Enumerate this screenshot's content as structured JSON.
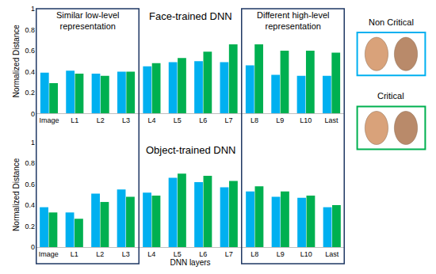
{
  "chart_data": [
    {
      "type": "bar",
      "title": "Face-trained DNN",
      "ylabel": "Normalized Distance",
      "categories": [
        "Image",
        "L1",
        "L2",
        "L3",
        "L4",
        "L5",
        "L6",
        "L7",
        "L8",
        "L9",
        "L10",
        "Last"
      ],
      "series": [
        {
          "name": "Non Critical",
          "color": "#00b0f0",
          "values": [
            0.39,
            0.41,
            0.38,
            0.4,
            0.45,
            0.49,
            0.5,
            0.49,
            0.46,
            0.37,
            0.36,
            0.36
          ]
        },
        {
          "name": "Critical",
          "color": "#00b050",
          "values": [
            0.29,
            0.38,
            0.36,
            0.4,
            0.48,
            0.53,
            0.59,
            0.66,
            0.66,
            0.6,
            0.6,
            0.58
          ]
        }
      ],
      "ylim": [
        0,
        1
      ],
      "yticks": [
        0,
        0.2,
        0.4,
        0.6,
        0.8,
        1
      ],
      "grid": false,
      "annotations": [
        {
          "text": [
            "Similar low-level",
            "representation"
          ],
          "from": "Image",
          "to": "L3"
        },
        {
          "text": [
            "Different high-level",
            "representation"
          ],
          "from": "L8",
          "to": "Last"
        }
      ]
    },
    {
      "type": "bar",
      "title": "Object-trained DNN",
      "ylabel": "Normalized Distance",
      "xlabel": "DNN layers",
      "categories": [
        "Image",
        "L1",
        "L2",
        "L3",
        "L4",
        "L5",
        "L6",
        "L7",
        "L8",
        "L9",
        "L10",
        "Last"
      ],
      "series": [
        {
          "name": "Non Critical",
          "color": "#00b0f0",
          "values": [
            0.38,
            0.33,
            0.51,
            0.55,
            0.52,
            0.66,
            0.62,
            0.57,
            0.53,
            0.48,
            0.47,
            0.38
          ]
        },
        {
          "name": "Critical",
          "color": "#00b050",
          "values": [
            0.33,
            0.27,
            0.43,
            0.48,
            0.49,
            0.7,
            0.68,
            0.63,
            0.58,
            0.53,
            0.49,
            0.4
          ]
        }
      ],
      "ylim": [
        0,
        1
      ],
      "yticks": [
        0,
        0.2,
        0.4,
        0.6,
        0.8,
        1
      ],
      "grid": false
    }
  ]
}
